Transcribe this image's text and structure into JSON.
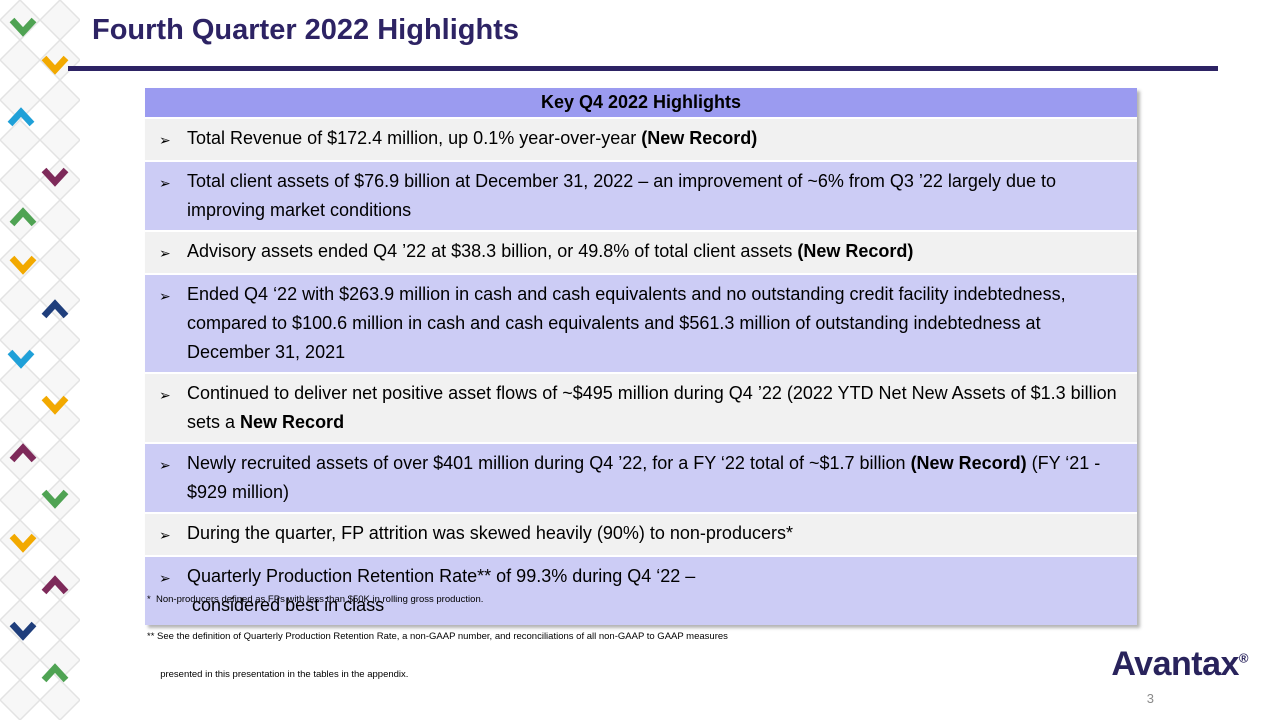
{
  "slide": {
    "title": "Fourth Quarter 2022 Highlights",
    "page_number": "3",
    "logo_text": "Avantax",
    "logo_mark": "®"
  },
  "table": {
    "header": "Key Q4 2022 Highlights",
    "bullet": "➢",
    "rows": [
      {
        "variant": "gray",
        "segments": [
          {
            "text": "Total Revenue of $172.4 million, up 0.1% year-over-year ",
            "bold": false
          },
          {
            "text": "(New Record)",
            "bold": true
          }
        ]
      },
      {
        "variant": "lavender",
        "segments": [
          {
            "text": "Total client assets of $76.9 billion at December 31, 2022 – an improvement of ~6% from Q3 ’22 largely due to improving market conditions",
            "bold": false
          }
        ]
      },
      {
        "variant": "gray",
        "segments": [
          {
            "text": "Advisory assets ended Q4 ’22 at $38.3 billion, or 49.8% of total client assets ",
            "bold": false
          },
          {
            "text": "(New Record)",
            "bold": true
          }
        ]
      },
      {
        "variant": "lavender",
        "segments": [
          {
            "text": "Ended Q4 ‘22 with $263.9 million in cash and cash equivalents and no outstanding credit facility indebtedness, compared to $100.6 million in cash and cash equivalents and $561.3 million of outstanding indebtedness at December 31, 2021",
            "bold": false
          }
        ]
      },
      {
        "variant": "gray",
        "segments": [
          {
            "text": "Continued to deliver net positive asset flows of ~$495 million during Q4 ’22 (2022 YTD Net New Assets of $1.3 billion sets a ",
            "bold": false
          },
          {
            "text": "New Record",
            "bold": true
          }
        ]
      },
      {
        "variant": "lavender",
        "segments": [
          {
            "text": "Newly recruited assets of over $401 million during Q4 ’22, for a FY ‘22 total of ~$1.7 billion ",
            "bold": false
          },
          {
            "text": "(New Record)",
            "bold": true
          },
          {
            "text": " (FY ‘21 - $929 million)",
            "bold": false
          }
        ]
      },
      {
        "variant": "gray",
        "segments": [
          {
            "text": "During the quarter, FP attrition was skewed heavily (90%) to non-producers*",
            "bold": false
          }
        ]
      },
      {
        "variant": "lavender",
        "segments": [
          {
            "text": "Quarterly Production Retention Rate** of 99.3% during Q4 ‘22 –\n considered best in class",
            "bold": false
          }
        ]
      }
    ]
  },
  "footnotes": [
    "*  Non-producers defined as FPs with less than $50K in rolling gross production.",
    "** See the definition of Quarterly Production Retention Rate, a non-GAAP number, and reconciliations of all non-GAAP to GAAP measures",
    "     presented in this presentation in the tables in the appendix."
  ],
  "colors": {
    "title": "#2D2364",
    "header_bg": "#9B9BF0",
    "row_gray": "#F1F1F1",
    "row_lavender": "#CCCCF5",
    "logo": "#29235C",
    "accent_green": "#4FA353",
    "accent_teal": "#1FA0D8",
    "accent_gold": "#F2A900",
    "accent_maroon": "#7E2A5A",
    "accent_navy": "#1F3E7C"
  }
}
